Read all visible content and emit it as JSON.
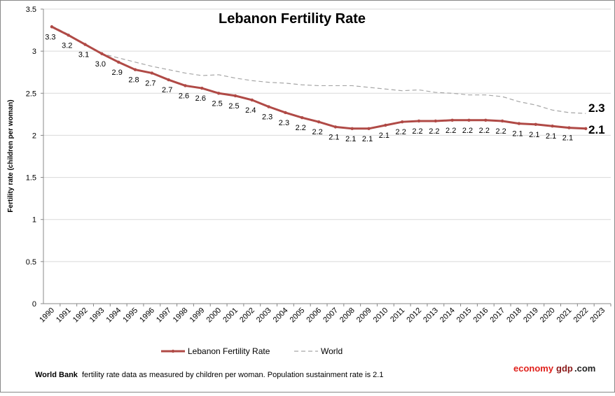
{
  "chart_data": {
    "type": "line",
    "title": "Lebanon Fertility Rate",
    "y_label": "Fertility rate (children per woman)",
    "categories": [
      "1990",
      "1991",
      "1992",
      "1993",
      "1994",
      "1995",
      "1996",
      "1997",
      "1998",
      "1999",
      "2000",
      "2001",
      "2002",
      "2003",
      "2004",
      "2005",
      "2006",
      "2007",
      "2008",
      "2009",
      "2010",
      "2011",
      "2012",
      "2013",
      "2014",
      "2015",
      "2016",
      "2017",
      "2018",
      "2019",
      "2020",
      "2021",
      "2022",
      "2023"
    ],
    "series": [
      {
        "name": "Lebanon Fertility Rate",
        "color": "#b04a46",
        "style": "solid",
        "values": [
          3.29,
          3.19,
          3.08,
          2.97,
          2.87,
          2.78,
          2.74,
          2.66,
          2.59,
          2.56,
          2.5,
          2.47,
          2.42,
          2.34,
          2.27,
          2.21,
          2.16,
          2.1,
          2.08,
          2.08,
          2.12,
          2.16,
          2.17,
          2.17,
          2.18,
          2.18,
          2.18,
          2.17,
          2.14,
          2.13,
          2.11,
          2.09,
          2.08,
          null
        ],
        "value_labels": [
          "3.3",
          "3.2",
          "3.1",
          "3.0",
          "2.9",
          "2.8",
          "2.7",
          "2.7",
          "2.6",
          "2.6",
          "2.5",
          "2.5",
          "2.4",
          "2.3",
          "2.3",
          "2.2",
          "2.2",
          "2.1",
          "2.1",
          "2.1",
          "2.1",
          "2.2",
          "2.2",
          "2.2",
          "2.2",
          "2.2",
          "2.2",
          "2.2",
          "2.1",
          "2.1",
          "2.1",
          "2.1",
          null,
          null
        ]
      },
      {
        "name": "World",
        "color": "#a6a6a6",
        "style": "dashed",
        "values": [
          3.3,
          3.2,
          3.08,
          2.97,
          2.92,
          2.87,
          2.82,
          2.78,
          2.74,
          2.71,
          2.72,
          2.68,
          2.65,
          2.63,
          2.62,
          2.6,
          2.59,
          2.59,
          2.59,
          2.57,
          2.55,
          2.53,
          2.54,
          2.51,
          2.5,
          2.48,
          2.48,
          2.46,
          2.4,
          2.36,
          2.3,
          2.27,
          2.26,
          null
        ]
      }
    ],
    "annotations": [
      {
        "text": "2.3"
      },
      {
        "text": "2.1"
      }
    ],
    "ylim": [
      0,
      3.5
    ],
    "yticks": [
      0,
      0.5,
      1,
      1.5,
      2,
      2.5,
      3,
      3.5
    ],
    "grid": true,
    "legend": "bottom"
  },
  "footer": {
    "source": "World Bank",
    "note": "fertility rate data as measured by children per woman.  Population sustainment rate is 2.1",
    "brand": [
      "economy",
      "gdp",
      ".com"
    ]
  }
}
